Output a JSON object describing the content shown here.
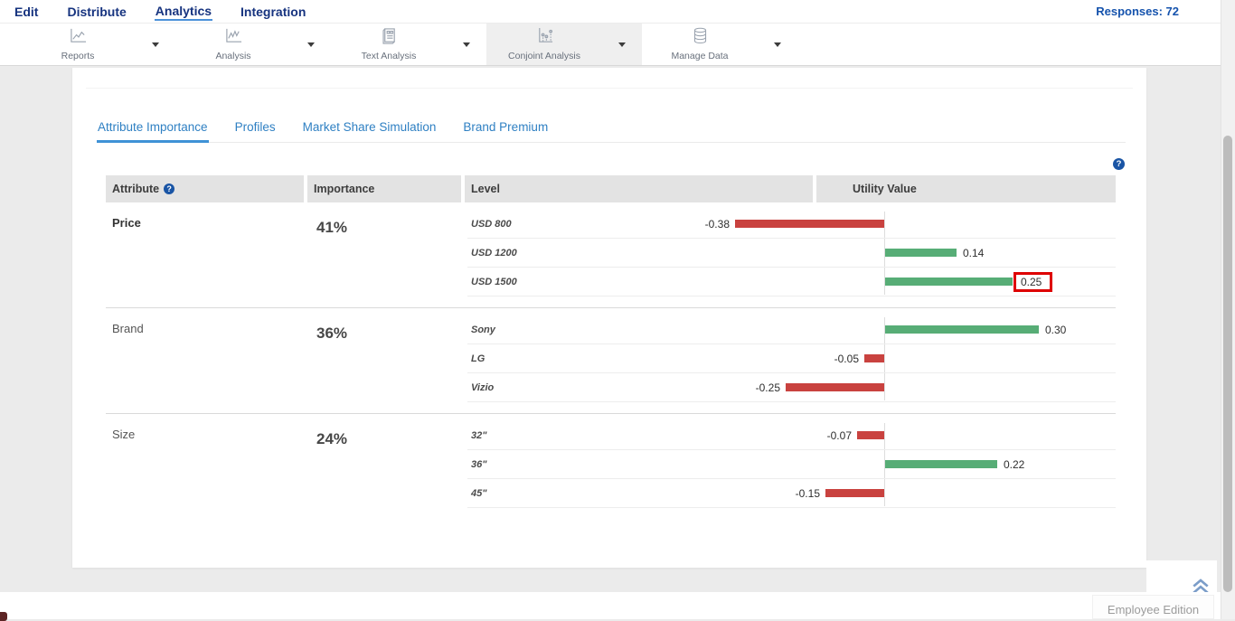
{
  "nav": {
    "items": [
      {
        "label": "Edit",
        "active": false
      },
      {
        "label": "Distribute",
        "active": false
      },
      {
        "label": "Analytics",
        "active": true
      },
      {
        "label": "Integration",
        "active": false
      }
    ],
    "responses": "Responses: 72"
  },
  "toolbar": {
    "items": [
      {
        "label": "Reports",
        "icon": "reports-chart",
        "active": false
      },
      {
        "label": "Analysis",
        "icon": "analysis-chart",
        "active": false
      },
      {
        "label": "Text Analysis",
        "icon": "text-analysis-document",
        "active": false
      },
      {
        "label": "Conjoint Analysis",
        "icon": "conjoint-scatter-chart",
        "active": true
      },
      {
        "label": "Manage Data",
        "icon": "database",
        "active": false
      }
    ]
  },
  "tabs": [
    {
      "label": "Attribute Importance",
      "active": true
    },
    {
      "label": "Profiles",
      "active": false
    },
    {
      "label": "Market Share Simulation",
      "active": false
    },
    {
      "label": "Brand Premium",
      "active": false
    }
  ],
  "table": {
    "headers": {
      "attribute": "Attribute",
      "importance": "Importance",
      "level": "Level",
      "utility": "Utility Value"
    },
    "help_icon": "?"
  },
  "chart_data": {
    "type": "bar",
    "orientation": "horizontal",
    "axis_note": "utility values, zero-centered; negative bars left/red, positive bars right/green",
    "groups": [
      {
        "attribute": "Price",
        "importance": "41%",
        "bold": true,
        "levels": [
          {
            "label": "USD 800",
            "value": -0.38,
            "display": "-0.38",
            "highlighted": false
          },
          {
            "label": "USD 1200",
            "value": 0.14,
            "display": "0.14",
            "highlighted": false
          },
          {
            "label": "USD 1500",
            "value": 0.25,
            "display": "0.25",
            "highlighted": true
          }
        ]
      },
      {
        "attribute": "Brand",
        "importance": "36%",
        "bold": false,
        "levels": [
          {
            "label": "Sony",
            "value": 0.3,
            "display": "0.30",
            "highlighted": false
          },
          {
            "label": "LG",
            "value": -0.05,
            "display": "-0.05",
            "highlighted": false
          },
          {
            "label": "Vizio",
            "value": -0.25,
            "display": "-0.25",
            "highlighted": false
          }
        ]
      },
      {
        "attribute": "Size",
        "importance": "24%",
        "bold": false,
        "levels": [
          {
            "label": "32\"",
            "value": -0.07,
            "display": "-0.07",
            "highlighted": false
          },
          {
            "label": "36\"",
            "value": 0.22,
            "display": "0.22",
            "highlighted": false
          },
          {
            "label": "45\"",
            "value": -0.15,
            "display": "-0.15",
            "highlighted": false
          }
        ]
      }
    ]
  },
  "footer": {
    "edition": "Employee Edition"
  },
  "colors": {
    "positive_bar": "#57ad76",
    "negative_bar": "#c9423f",
    "highlight_box": "#de0000",
    "tab_blue": "#2f80c3",
    "nav_navy": "#16337f"
  }
}
